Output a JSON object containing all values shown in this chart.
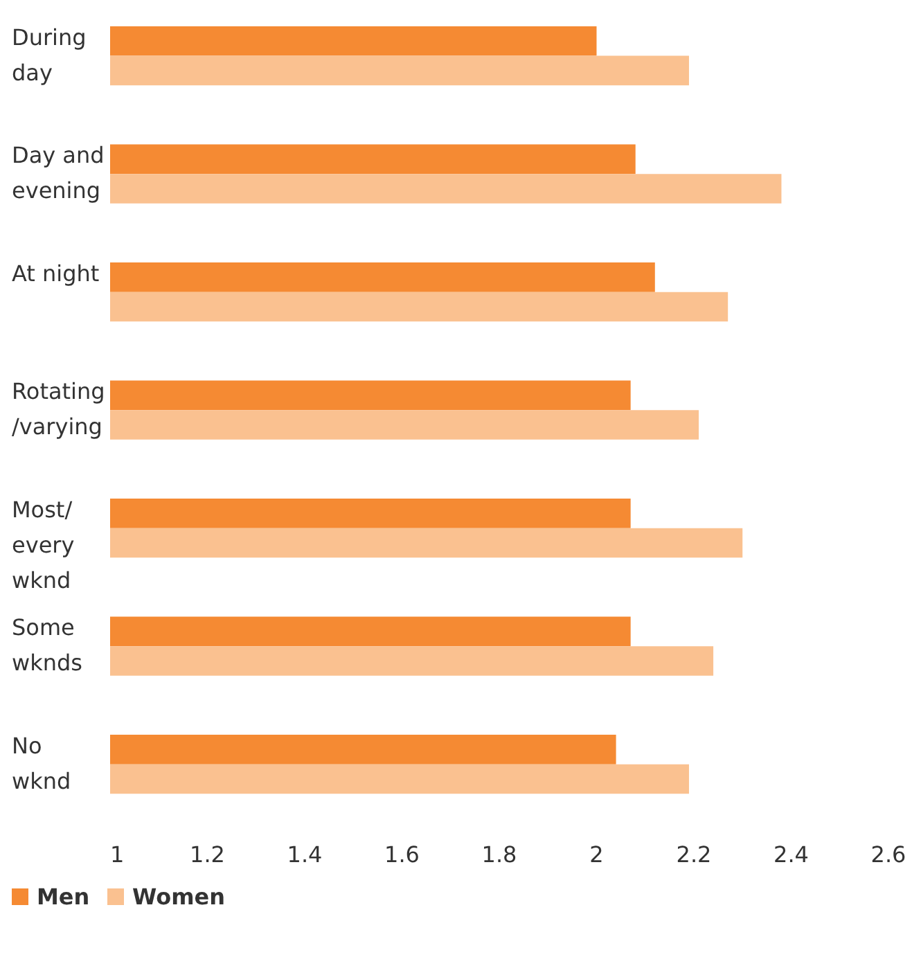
{
  "chart_data": {
    "type": "bar",
    "orientation": "horizontal",
    "categories": [
      "During\nday",
      "Day and\nevening",
      "At night",
      "Rotating\n/varying",
      "Most/\nevery\nwknd",
      "Some\nwknds",
      "No\nwknd"
    ],
    "series": [
      {
        "name": "Men",
        "color": "#f58a33",
        "values": [
          2.0,
          2.08,
          2.12,
          2.07,
          2.07,
          2.07,
          2.04
        ]
      },
      {
        "name": "Women",
        "color": "#fac190",
        "values": [
          2.19,
          2.38,
          2.27,
          2.21,
          2.3,
          2.24,
          2.19
        ]
      }
    ],
    "xlim": [
      1,
      2.6
    ],
    "xticks": [
      1,
      1.2,
      1.4,
      1.6,
      1.8,
      2,
      2.2,
      2.4,
      2.6
    ],
    "grid": false,
    "legend": "bottom left"
  }
}
